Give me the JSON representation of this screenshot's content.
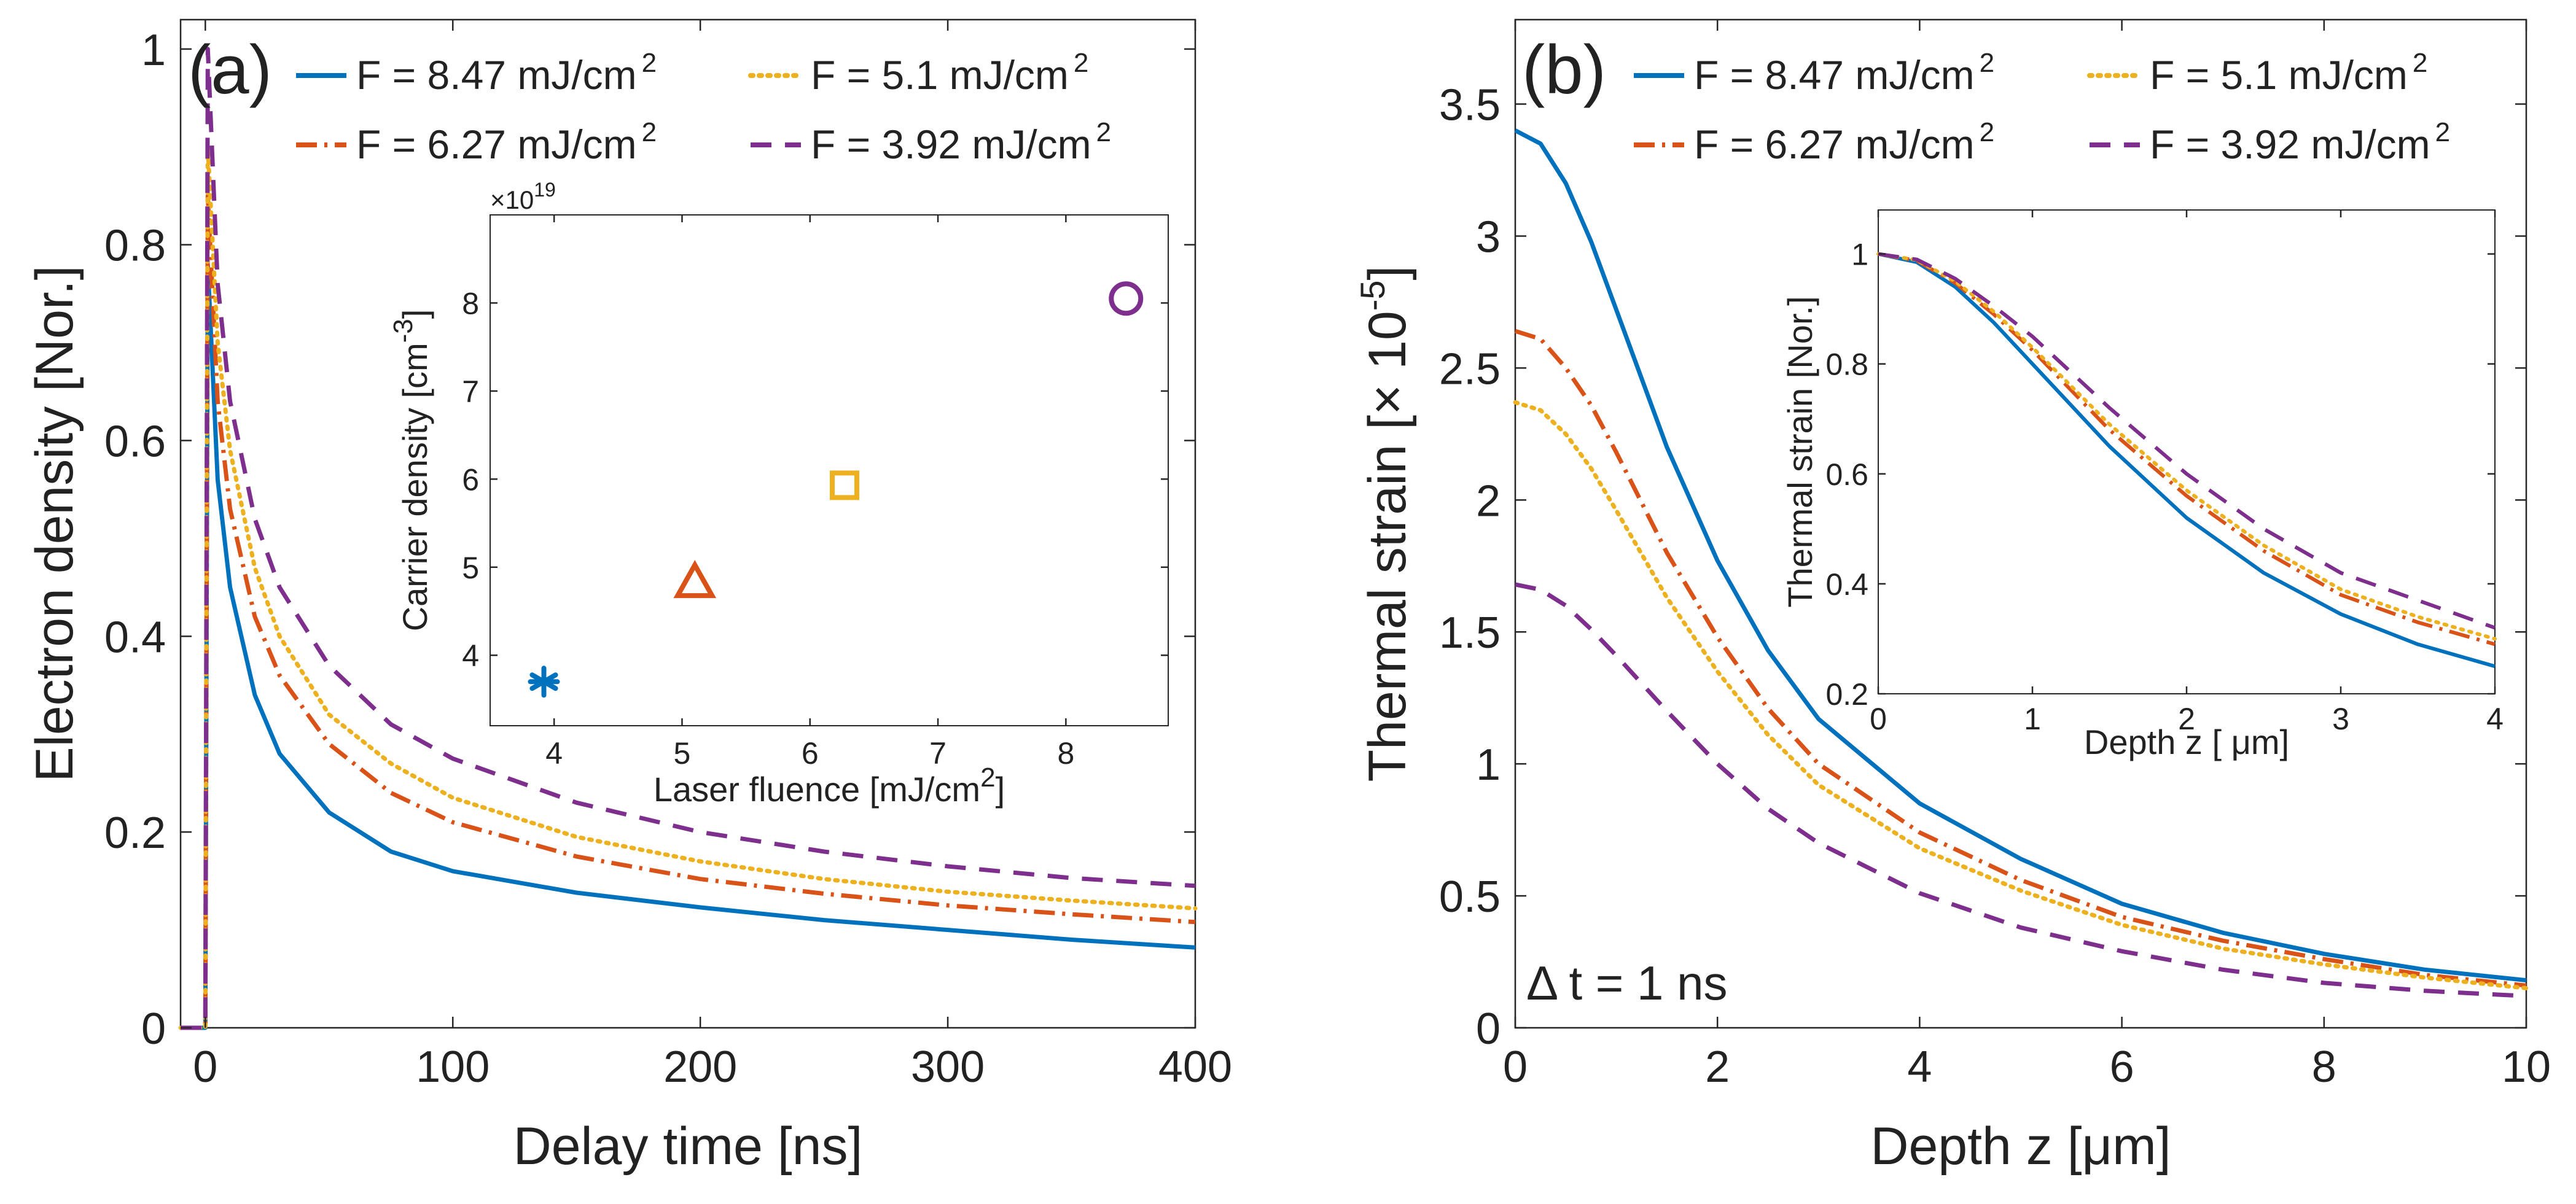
{
  "colors": {
    "blue": "#0072BD",
    "orange": "#D95319",
    "yellow": "#EDB120",
    "purple": "#7E2F8E",
    "axis": "#262626"
  },
  "chart_data": [
    {
      "panel": "(a)",
      "type": "line",
      "xlabel": "Delay time [ns]",
      "ylabel": "Electron density [Nor.]",
      "xlim": [
        -10,
        400
      ],
      "ylim": [
        0,
        1.03
      ],
      "xticks": [
        "0",
        "100",
        "200",
        "300",
        "400"
      ],
      "yticks": [
        "0",
        "0.2",
        "0.4",
        "0.6",
        "0.8",
        "1"
      ],
      "legend_placement": "top",
      "legend": [
        {
          "main": "F = 8.47 mJ/cm",
          "sup": "2",
          "style": "solid",
          "color": "blue"
        },
        {
          "main": "F = 5.1   mJ/cm",
          "sup": "2",
          "style": "dotted",
          "color": "yellow"
        },
        {
          "main": "F = 6.27 mJ/cm",
          "sup": "2",
          "style": "dashdot",
          "color": "orange"
        },
        {
          "main": "F = 3.92 mJ/cm",
          "sup": "2",
          "style": "dashed",
          "color": "purple"
        }
      ],
      "series": [
        {
          "name": "F = 8.47 mJ/cm2",
          "color": "blue",
          "style": "solid",
          "x": [
            -10,
            0,
            1,
            5,
            10,
            20,
            30,
            50,
            75,
            100,
            150,
            200,
            250,
            300,
            350,
            400
          ],
          "y": [
            0,
            0,
            0.78,
            0.56,
            0.45,
            0.34,
            0.28,
            0.22,
            0.18,
            0.16,
            0.138,
            0.123,
            0.11,
            0.1,
            0.09,
            0.082
          ]
        },
        {
          "name": "F = 6.27 mJ/cm2",
          "color": "orange",
          "style": "dashdot",
          "x": [
            -10,
            0,
            1,
            5,
            10,
            20,
            30,
            50,
            75,
            100,
            150,
            200,
            250,
            300,
            350,
            400
          ],
          "y": [
            0,
            0,
            0.85,
            0.64,
            0.53,
            0.42,
            0.36,
            0.29,
            0.24,
            0.21,
            0.175,
            0.152,
            0.137,
            0.125,
            0.116,
            0.108
          ]
        },
        {
          "name": "F = 5.1 mJ/cm2",
          "color": "yellow",
          "style": "dotted",
          "x": [
            -10,
            0,
            1,
            5,
            10,
            20,
            30,
            50,
            75,
            100,
            150,
            200,
            250,
            300,
            350,
            400
          ],
          "y": [
            0,
            0,
            0.9,
            0.7,
            0.59,
            0.47,
            0.4,
            0.32,
            0.27,
            0.235,
            0.195,
            0.17,
            0.152,
            0.139,
            0.13,
            0.122
          ]
        },
        {
          "name": "F = 3.92 mJ/cm2",
          "color": "purple",
          "style": "dashed",
          "x": [
            -10,
            0,
            1,
            5,
            10,
            20,
            30,
            50,
            75,
            100,
            150,
            200,
            250,
            300,
            350,
            400
          ],
          "y": [
            0,
            0,
            1.0,
            0.76,
            0.64,
            0.52,
            0.45,
            0.37,
            0.31,
            0.275,
            0.23,
            0.2,
            0.18,
            0.165,
            0.153,
            0.145
          ]
        }
      ],
      "inset": {
        "type": "scatter",
        "xlabel": "Laser fluence [mJ/cm",
        "xlabel_sup": "2",
        "xlabel_end": "]",
        "ylabel": "Carrier density [cm",
        "ylabel_sup": "-3",
        "ylabel_end": "]",
        "exponent_prefix": "×10",
        "exponent": "19",
        "xlim": [
          3.5,
          8.8
        ],
        "ylim": [
          3.2,
          9.0
        ],
        "xticks": [
          "4",
          "5",
          "6",
          "7",
          "8"
        ],
        "yticks": [
          "4",
          "5",
          "6",
          "7",
          "8"
        ],
        "points": [
          {
            "x": 3.92,
            "y": 3.7,
            "marker": "asterisk",
            "color": "blue"
          },
          {
            "x": 5.1,
            "y": 4.83,
            "marker": "triangle",
            "color": "orange"
          },
          {
            "x": 6.27,
            "y": 5.93,
            "marker": "square",
            "color": "yellow"
          },
          {
            "x": 8.47,
            "y": 8.05,
            "marker": "circle",
            "color": "purple"
          }
        ]
      }
    },
    {
      "panel": "(b)",
      "type": "line",
      "xlabel": "Depth z [μm]",
      "ylabel": "Thermal strain [× 10",
      "ylabel_sup": "-5",
      "ylabel_end": "]",
      "xlim": [
        0,
        10
      ],
      "ylim": [
        0,
        3.82
      ],
      "xticks": [
        "0",
        "2",
        "4",
        "6",
        "8",
        "10"
      ],
      "yticks": [
        "0",
        "0.5",
        "1",
        "1.5",
        "2",
        "2.5",
        "3",
        "3.5"
      ],
      "annotation": "Δ t = 1 ns",
      "legend_placement": "top",
      "legend": [
        {
          "main": "F = 8.47 mJ/cm",
          "sup": "2",
          "style": "solid",
          "color": "blue"
        },
        {
          "main": "F = 5.1   mJ/cm",
          "sup": "2",
          "style": "dotted",
          "color": "yellow"
        },
        {
          "main": "F = 6.27 mJ/cm",
          "sup": "2",
          "style": "dashdot",
          "color": "orange"
        },
        {
          "main": "F = 3.92 mJ/cm",
          "sup": "2",
          "style": "dashed",
          "color": "purple"
        }
      ],
      "series": [
        {
          "name": "F = 8.47 mJ/cm2",
          "color": "blue",
          "style": "solid",
          "x": [
            0,
            0.25,
            0.5,
            0.75,
            1,
            1.5,
            2,
            2.5,
            3,
            4,
            5,
            6,
            7,
            8,
            9,
            10
          ],
          "y": [
            3.4,
            3.35,
            3.2,
            2.98,
            2.72,
            2.2,
            1.77,
            1.43,
            1.17,
            0.85,
            0.64,
            0.47,
            0.36,
            0.28,
            0.22,
            0.18
          ]
        },
        {
          "name": "F = 6.27 mJ/cm2",
          "color": "orange",
          "style": "dashdot",
          "x": [
            0,
            0.25,
            0.5,
            0.75,
            1,
            1.5,
            2,
            2.5,
            3,
            4,
            5,
            6,
            7,
            8,
            9,
            10
          ],
          "y": [
            2.64,
            2.61,
            2.5,
            2.36,
            2.18,
            1.8,
            1.48,
            1.21,
            1.0,
            0.74,
            0.56,
            0.42,
            0.33,
            0.26,
            0.2,
            0.16
          ]
        },
        {
          "name": "F = 5.1 mJ/cm2",
          "color": "yellow",
          "style": "dotted",
          "x": [
            0,
            0.25,
            0.5,
            0.75,
            1,
            1.5,
            2,
            2.5,
            3,
            4,
            5,
            6,
            7,
            8,
            9,
            10
          ],
          "y": [
            2.37,
            2.34,
            2.25,
            2.12,
            1.96,
            1.63,
            1.35,
            1.11,
            0.92,
            0.68,
            0.52,
            0.39,
            0.3,
            0.24,
            0.19,
            0.15
          ]
        },
        {
          "name": "F = 3.92 mJ/cm2",
          "color": "purple",
          "style": "dashed",
          "x": [
            0,
            0.25,
            0.5,
            0.75,
            1,
            1.5,
            2,
            2.5,
            3,
            4,
            5,
            6,
            7,
            8,
            9,
            10
          ],
          "y": [
            1.68,
            1.66,
            1.6,
            1.51,
            1.41,
            1.2,
            1.0,
            0.83,
            0.7,
            0.51,
            0.38,
            0.29,
            0.22,
            0.17,
            0.14,
            0.12
          ]
        }
      ],
      "inset": {
        "type": "line",
        "xlabel": "Depth z [ μm]",
        "ylabel": "Thermal strain [Nor.]",
        "xlim": [
          0,
          4
        ],
        "ylim": [
          0.2,
          1.08
        ],
        "xticks": [
          "0",
          "1",
          "2",
          "3",
          "4"
        ],
        "yticks": [
          "0.2",
          "0.4",
          "0.6",
          "0.8",
          "1"
        ],
        "series": [
          {
            "color": "blue",
            "style": "solid",
            "x": [
              0,
              0.25,
              0.5,
              0.75,
              1,
              1.5,
              2,
              2.5,
              3,
              3.5,
              4
            ],
            "y": [
              1.0,
              0.985,
              0.94,
              0.875,
              0.8,
              0.65,
              0.52,
              0.42,
              0.345,
              0.29,
              0.25
            ]
          },
          {
            "color": "orange",
            "style": "dashdot",
            "x": [
              0,
              0.25,
              0.5,
              0.75,
              1,
              1.5,
              2,
              2.5,
              3,
              3.5,
              4
            ],
            "y": [
              1.0,
              0.988,
              0.947,
              0.89,
              0.825,
              0.68,
              0.56,
              0.46,
              0.38,
              0.33,
              0.29
            ]
          },
          {
            "color": "yellow",
            "style": "dotted",
            "x": [
              0,
              0.25,
              0.5,
              0.75,
              1,
              1.5,
              2,
              2.5,
              3,
              3.5,
              4
            ],
            "y": [
              1.0,
              0.989,
              0.95,
              0.895,
              0.83,
              0.69,
              0.57,
              0.47,
              0.39,
              0.34,
              0.3
            ]
          },
          {
            "color": "purple",
            "style": "dashed",
            "x": [
              0,
              0.25,
              0.5,
              0.75,
              1,
              1.5,
              2,
              2.5,
              3,
              3.5,
              4
            ],
            "y": [
              1.0,
              0.99,
              0.955,
              0.905,
              0.85,
              0.72,
              0.6,
              0.5,
              0.42,
              0.37,
              0.32
            ]
          }
        ]
      }
    }
  ]
}
